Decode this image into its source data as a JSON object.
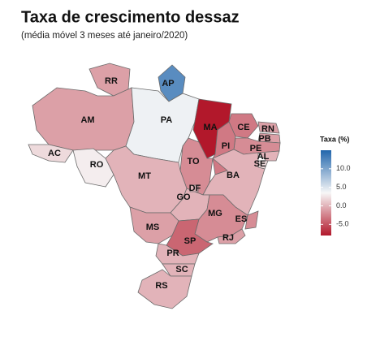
{
  "chart_data": {
    "type": "choropleth",
    "title": "Taxa de crescimento dessaz",
    "subtitle": "(média móvel 3 meses até janeiro/2020)",
    "categories": [
      "RR",
      "AP",
      "AM",
      "PA",
      "MA",
      "CE",
      "RN",
      "PB",
      "PE",
      "AL",
      "SE",
      "PI",
      "TO",
      "BA",
      "AC",
      "RO",
      "MT",
      "GO",
      "MS",
      "MG",
      "ES",
      "RJ",
      "SP",
      "PR",
      "SC",
      "RS",
      "DF"
    ],
    "values": [
      -1,
      12,
      -1,
      4,
      -8,
      -3,
      -1,
      -1,
      -2,
      0,
      2,
      -3,
      -2,
      0,
      2,
      3,
      0,
      0,
      -1,
      -2,
      -2,
      -1,
      -4,
      0,
      0,
      0,
      0
    ],
    "legend": {
      "title": "Taxa (%)",
      "lim": [
        -8,
        15
      ],
      "ticks": [
        {
          "value": 10,
          "label": "10.0"
        },
        {
          "value": 5,
          "label": "5.0"
        },
        {
          "value": 0,
          "label": "0.0"
        },
        {
          "value": -5,
          "label": "-5.0"
        }
      ],
      "colors": [
        "#b2182b",
        "#f7f7f7",
        "#2166ac"
      ]
    }
  }
}
